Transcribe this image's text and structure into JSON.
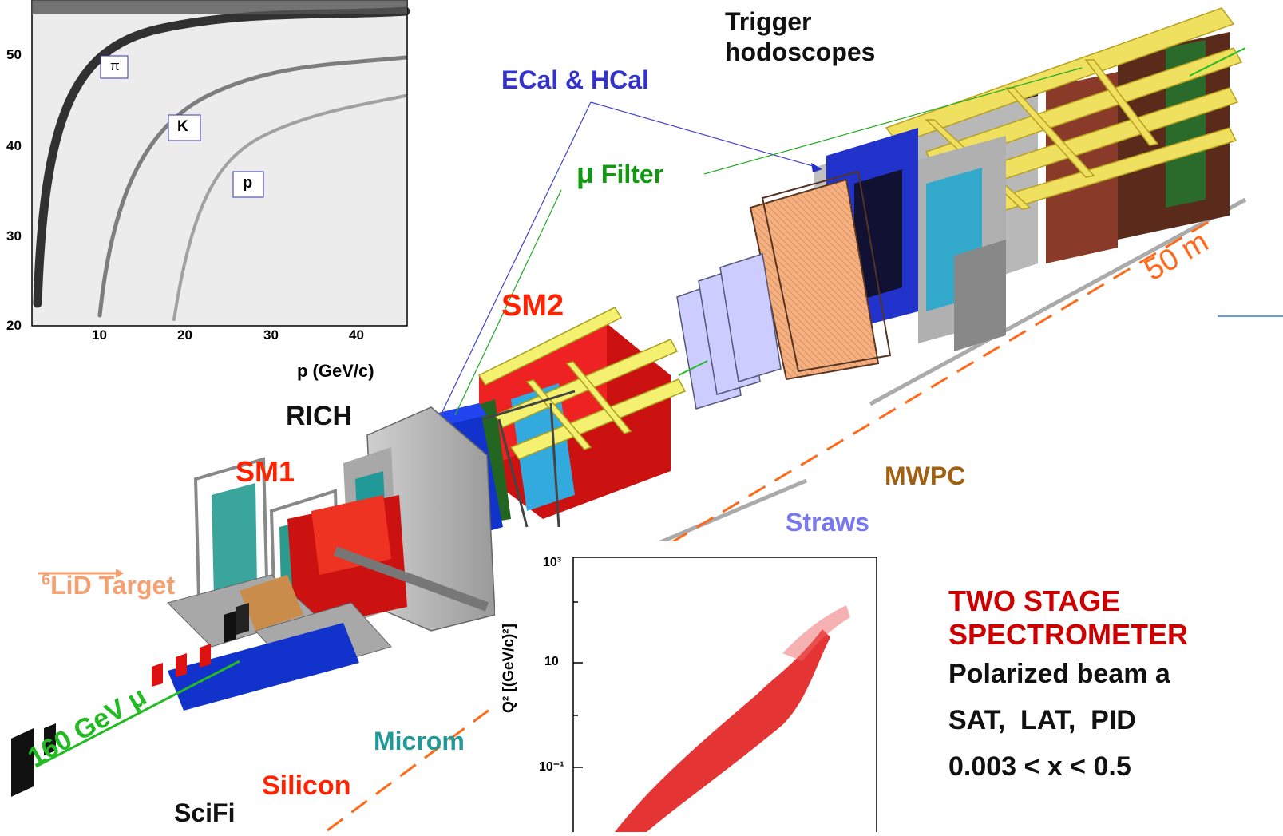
{
  "colors": {
    "blue_label": "#3333cc",
    "green_label": "#119911",
    "red_label": "#ff2200",
    "orange_label": "#f4a070",
    "teal_label": "#229999",
    "brown_label": "#a06010",
    "straws_label": "#7777ee",
    "dashed_line": "#ff6a1a",
    "beam": "#22bb22",
    "dark_red": "#cc0000"
  },
  "labels": {
    "trigger": "Trigger\nhodoscopes",
    "ecal_hcal": "ECal & HCal",
    "mu_symbol": "μ",
    "mu_filter": "Filter",
    "sm2": "SM2",
    "rich": "RICH",
    "sm1": "SM1",
    "target_sup": "6",
    "target": "LiD Target",
    "beam_energy": "160 GeV",
    "beam_mu": "μ",
    "micromegas": "Microm",
    "scifi": "SciFi",
    "silicon": "Silicon",
    "mwpc": "MWPC",
    "straws": "Straws",
    "scale": "50 m"
  },
  "right_text": {
    "title_line1": "TWO STAGE",
    "title_line2": "SPECTROMETER",
    "line1": "Polarized beam a",
    "line2": "SAT,  LAT,  PID",
    "line3": "0.003 < x < 0.5"
  },
  "inset_top": {
    "x_ticks": [
      "10",
      "20",
      "30",
      "40"
    ],
    "y_ticks": [
      "20",
      "30",
      "40",
      "50"
    ],
    "xlabel": "p (GeV/c)",
    "band_labels": [
      "π",
      "K",
      "p"
    ]
  },
  "inset_bottom": {
    "ylabel": "Q² [(GeV/c)²]",
    "y_ticks": [
      "10³",
      "10",
      "10⁻¹"
    ]
  }
}
